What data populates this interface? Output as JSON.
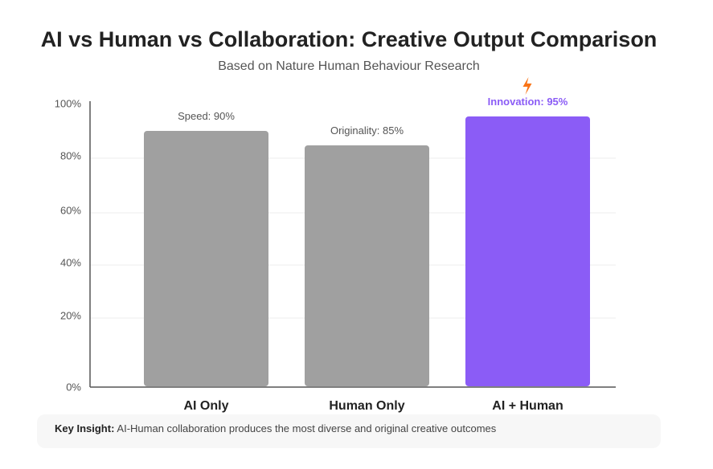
{
  "header": {
    "title": "AI vs Human vs Collaboration: Creative Output Comparison",
    "subtitle": "Based on Nature Human Behaviour Research"
  },
  "chart_data": {
    "type": "bar",
    "categories": [
      "AI Only",
      "Human Only",
      "AI + Human"
    ],
    "values": [
      90,
      85,
      95
    ],
    "data_labels": [
      "Speed: 90%",
      "Originality: 85%",
      "Innovation: 95%"
    ],
    "highlight_icon": "lightning-bolt-icon",
    "y_ticks": [
      "0%",
      "20%",
      "40%",
      "60%",
      "80%",
      "100%"
    ],
    "ylim": [
      0,
      100
    ],
    "grid": true,
    "colors": {
      "default_bar": "#a0a0a0",
      "highlight_bar": "#8b5cf6",
      "highlight_label": "#8b5cf6",
      "icon": "#f97316"
    }
  },
  "insight": {
    "label": "Key Insight:",
    "text": "AI-Human collaboration produces the most diverse and original creative outcomes"
  }
}
